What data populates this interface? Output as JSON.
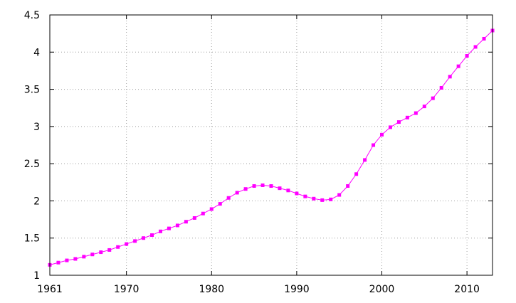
{
  "chart_data": {
    "type": "line",
    "title": "",
    "xlabel": "",
    "ylabel": "",
    "xlim": [
      1961,
      2013
    ],
    "ylim": [
      1,
      4.5
    ],
    "grid": true,
    "legend": "none",
    "x_ticks": [
      {
        "value": 1961,
        "label": "1961"
      },
      {
        "value": 1970,
        "label": "1970"
      },
      {
        "value": 1980,
        "label": "1980"
      },
      {
        "value": 1990,
        "label": "1990"
      },
      {
        "value": 2000,
        "label": "2000"
      },
      {
        "value": 2010,
        "label": "2010"
      }
    ],
    "y_ticks": [
      {
        "value": 1,
        "label": "1"
      },
      {
        "value": 1.5,
        "label": "1.5"
      },
      {
        "value": 2,
        "label": "2"
      },
      {
        "value": 2.5,
        "label": "2.5"
      },
      {
        "value": 3,
        "label": "3"
      },
      {
        "value": 3.5,
        "label": "3.5"
      },
      {
        "value": 4,
        "label": "4"
      },
      {
        "value": 4.5,
        "label": "4.5"
      }
    ],
    "series": [
      {
        "color": "#ff00ff",
        "marker": "square",
        "x": [
          1961,
          1962,
          1963,
          1964,
          1965,
          1966,
          1967,
          1968,
          1969,
          1970,
          1971,
          1972,
          1973,
          1974,
          1975,
          1976,
          1977,
          1978,
          1979,
          1980,
          1981,
          1982,
          1983,
          1984,
          1985,
          1986,
          1987,
          1988,
          1989,
          1990,
          1991,
          1992,
          1993,
          1994,
          1995,
          1996,
          1997,
          1998,
          1999,
          2000,
          2001,
          2002,
          2003,
          2004,
          2005,
          2006,
          2007,
          2008,
          2009,
          2010,
          2011,
          2012,
          2013
        ],
        "values": [
          1.14,
          1.17,
          1.2,
          1.22,
          1.25,
          1.28,
          1.31,
          1.34,
          1.38,
          1.42,
          1.46,
          1.5,
          1.54,
          1.59,
          1.63,
          1.67,
          1.72,
          1.77,
          1.83,
          1.89,
          1.96,
          2.04,
          2.11,
          2.16,
          2.2,
          2.21,
          2.2,
          2.17,
          2.14,
          2.1,
          2.06,
          2.03,
          2.01,
          2.02,
          2.08,
          2.2,
          2.36,
          2.55,
          2.75,
          2.89,
          2.99,
          3.06,
          3.12,
          3.18,
          3.27,
          3.38,
          3.52,
          3.67,
          3.81,
          3.95,
          4.07,
          4.18,
          4.29
        ]
      }
    ]
  }
}
